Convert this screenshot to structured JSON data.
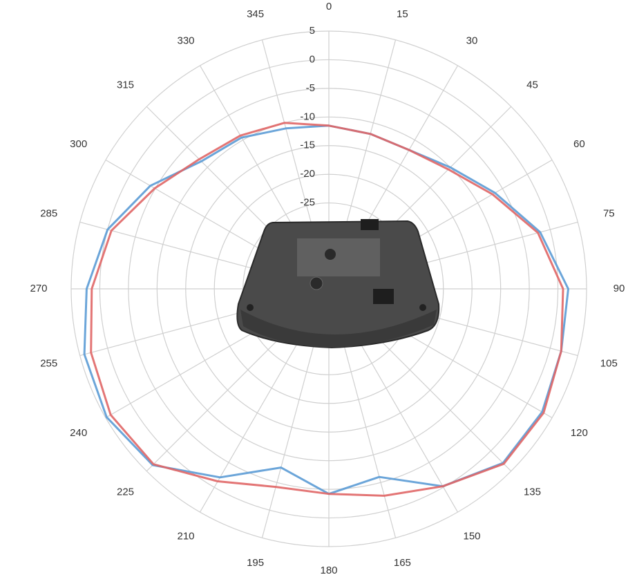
{
  "chart_data": {
    "type": "polar",
    "theta": [
      0,
      15,
      30,
      45,
      60,
      75,
      90,
      105,
      120,
      135,
      150,
      165,
      180,
      195,
      210,
      225,
      240,
      255,
      270,
      285,
      300,
      315,
      330,
      345
    ],
    "thetaticks": [
      0,
      15,
      30,
      45,
      60,
      75,
      90,
      105,
      120,
      135,
      150,
      165,
      180,
      195,
      210,
      225,
      240,
      255,
      270,
      285,
      300,
      315,
      330,
      345
    ],
    "rlim": [
      -40,
      5
    ],
    "rticks": [
      5,
      0,
      -5,
      -10,
      -15,
      -20,
      -25
    ],
    "grid": true,
    "series": [
      {
        "color": "#5b9bd5",
        "values": [
          -11.5,
          -12,
          -12,
          -10,
          -6.5,
          -1.8,
          1.8,
          2,
          3,
          3,
          -0.2,
          -6,
          -4.2,
          -7.7,
          -2,
          3.5,
          4.8,
          4.2,
          2.3,
          0,
          -4,
          -8.5,
          -9.5,
          -11
        ]
      },
      {
        "color": "#e06666",
        "values": [
          -11.5,
          -12,
          -12,
          -10.5,
          -7,
          -2.2,
          0.9,
          2,
          3.3,
          3.2,
          -0.2,
          -2.6,
          -4.2,
          -4.2,
          -1.2,
          3.3,
          4,
          3,
          1.4,
          -0.7,
          -4.9,
          -8,
          -9.1,
          -10
        ]
      }
    ]
  }
}
